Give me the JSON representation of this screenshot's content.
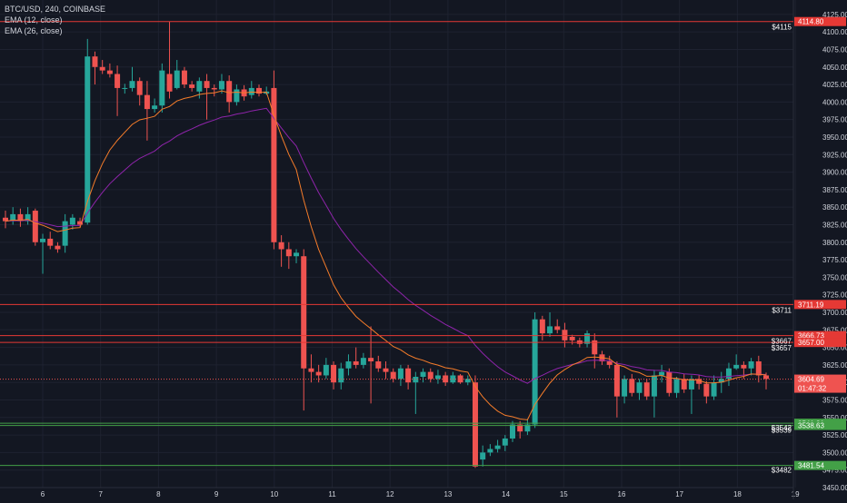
{
  "legend": {
    "symbol": "BTC/USD, 240, COINBASE",
    "ema_fast": "EMA (12, close)",
    "ema_slow": "EMA (26, close)"
  },
  "colors": {
    "background": "#131722",
    "grid": "#1e2230",
    "up": "#26a69a",
    "down": "#ef5350",
    "ema_fast": "#f57c2a",
    "ema_slow": "#8e24aa",
    "resistance": "#e53935",
    "support": "#43a047",
    "axis_text": "#d1d4dc"
  },
  "chart_data": {
    "type": "candlestick",
    "x_tick_labels": [
      "6",
      "7",
      "8",
      "9",
      "10",
      "11",
      "12",
      "13",
      "14",
      "15",
      "16",
      "17",
      "18",
      "19"
    ],
    "y_tick_labels": [
      "4125.00",
      "4100.00",
      "4075.00",
      "4050.00",
      "4025.00",
      "4000.00",
      "3975.00",
      "3950.00",
      "3925.00",
      "3900.00",
      "3875.00",
      "3850.00",
      "3825.00",
      "3800.00",
      "3775.00",
      "3750.00",
      "3725.00",
      "3700.00",
      "3675.00",
      "3650.00",
      "3625.00",
      "3600.00",
      "3575.00",
      "3550.00",
      "3525.00",
      "3500.00",
      "3475.00",
      "3450.00"
    ],
    "ylim": [
      3450,
      4130
    ],
    "grid": true,
    "levels": [
      {
        "price": 4114.8,
        "color": "red",
        "badge": "4114.80",
        "label": "$4115"
      },
      {
        "price": 3711.19,
        "color": "red",
        "badge": "3711.19",
        "label": "$3711"
      },
      {
        "price": 3666.73,
        "color": "red",
        "badge": "3666.73",
        "label": "$3667"
      },
      {
        "price": 3657.0,
        "color": "red",
        "badge": "3657.00",
        "label": "$3657"
      },
      {
        "price": 3541.81,
        "color": "green",
        "badge": "3541.81",
        "label": "$3542"
      },
      {
        "price": 3538.63,
        "color": "green",
        "badge": "3538.63",
        "label": "$3539"
      },
      {
        "price": 3481.54,
        "color": "green",
        "badge": "3481.54",
        "label": "$3482"
      }
    ],
    "current_price": {
      "price": 3604.69,
      "badge": "3604.69",
      "countdown": "01:47:32"
    },
    "candles": [
      [
        3835,
        3830,
        3845,
        3820
      ],
      [
        3830,
        3840,
        3850,
        3825
      ],
      [
        3840,
        3830,
        3848,
        3822
      ],
      [
        3830,
        3840,
        3850,
        3825
      ],
      [
        3845,
        3800,
        3848,
        3795
      ],
      [
        3800,
        3805,
        3812,
        3755
      ],
      [
        3805,
        3795,
        3815,
        3790
      ],
      [
        3795,
        3790,
        3800,
        3785
      ],
      [
        3795,
        3830,
        3840,
        3785
      ],
      [
        3825,
        3835,
        3840,
        3818
      ],
      [
        3830,
        3825,
        3835,
        3822
      ],
      [
        3828,
        4065,
        4090,
        3825
      ],
      [
        4065,
        4050,
        4072,
        4025
      ],
      [
        4050,
        4045,
        4060,
        4040
      ],
      [
        4045,
        4040,
        4055,
        4035
      ],
      [
        4040,
        4020,
        4052,
        3980
      ],
      [
        4020,
        4020,
        4026,
        4012
      ],
      [
        4020,
        4030,
        4050,
        4015
      ],
      [
        4030,
        4010,
        4035,
        3995
      ],
      [
        4010,
        3990,
        4030,
        3945
      ],
      [
        3990,
        3995,
        4005,
        3985
      ],
      [
        3995,
        4045,
        4055,
        3985
      ],
      [
        4040,
        4015,
        4115,
        4005
      ],
      [
        4020,
        4045,
        4060,
        4018
      ],
      [
        4045,
        4025,
        4050,
        4020
      ],
      [
        4025,
        4020,
        4030,
        4015
      ],
      [
        4015,
        4030,
        4035,
        4005
      ],
      [
        4030,
        4020,
        4040,
        3975
      ],
      [
        4020,
        4018,
        4025,
        4008
      ],
      [
        4018,
        4030,
        4040,
        4012
      ],
      [
        4030,
        4000,
        4038,
        3985
      ],
      [
        4000,
        4018,
        4025,
        3995
      ],
      [
        4018,
        4008,
        4024,
        4002
      ],
      [
        4010,
        4020,
        4030,
        4005
      ],
      [
        4020,
        4012,
        4025,
        4008
      ],
      [
        4012,
        4015,
        4022,
        4010
      ],
      [
        4020,
        3800,
        4045,
        3790
      ],
      [
        3800,
        3790,
        3810,
        3765
      ],
      [
        3790,
        3780,
        3800,
        3762
      ],
      [
        3780,
        3785,
        3790,
        3770
      ],
      [
        3780,
        3620,
        3790,
        3560
      ],
      [
        3620,
        3615,
        3640,
        3600
      ],
      [
        3615,
        3610,
        3625,
        3600
      ],
      [
        3610,
        3625,
        3635,
        3605
      ],
      [
        3625,
        3600,
        3630,
        3590
      ],
      [
        3600,
        3620,
        3628,
        3590
      ],
      [
        3620,
        3630,
        3640,
        3610
      ],
      [
        3630,
        3625,
        3650,
        3620
      ],
      [
        3625,
        3635,
        3642,
        3620
      ],
      [
        3635,
        3630,
        3680,
        3570
      ],
      [
        3630,
        3620,
        3638,
        3615
      ],
      [
        3620,
        3615,
        3630,
        3605
      ],
      [
        3615,
        3605,
        3620,
        3600
      ],
      [
        3605,
        3620,
        3625,
        3595
      ],
      [
        3620,
        3600,
        3625,
        3590
      ],
      [
        3600,
        3608,
        3615,
        3555
      ],
      [
        3608,
        3615,
        3620,
        3600
      ],
      [
        3615,
        3605,
        3620,
        3600
      ],
      [
        3605,
        3610,
        3618,
        3598
      ],
      [
        3610,
        3600,
        3615,
        3595
      ],
      [
        3600,
        3610,
        3615,
        3598
      ],
      [
        3610,
        3600,
        3612,
        3598
      ],
      [
        3600,
        3605,
        3610,
        3596
      ],
      [
        3600,
        3480,
        3610,
        3478
      ],
      [
        3490,
        3500,
        3510,
        3480
      ],
      [
        3500,
        3505,
        3512,
        3495
      ],
      [
        3505,
        3510,
        3518,
        3500
      ],
      [
        3510,
        3520,
        3525,
        3502
      ],
      [
        3520,
        3540,
        3545,
        3515
      ],
      [
        3540,
        3530,
        3545,
        3520
      ],
      [
        3530,
        3540,
        3548,
        3525
      ],
      [
        3540,
        3690,
        3700,
        3535
      ],
      [
        3690,
        3670,
        3695,
        3660
      ],
      [
        3670,
        3680,
        3700,
        3665
      ],
      [
        3680,
        3675,
        3690,
        3670
      ],
      [
        3675,
        3660,
        3685,
        3650
      ],
      [
        3665,
        3660,
        3668,
        3654
      ],
      [
        3660,
        3655,
        3664,
        3650
      ],
      [
        3655,
        3670,
        3674,
        3650
      ],
      [
        3660,
        3640,
        3670,
        3620
      ],
      [
        3640,
        3630,
        3645,
        3625
      ],
      [
        3630,
        3625,
        3638,
        3620
      ],
      [
        3625,
        3580,
        3630,
        3550
      ],
      [
        3580,
        3605,
        3610,
        3570
      ],
      [
        3605,
        3585,
        3612,
        3580
      ],
      [
        3585,
        3600,
        3605,
        3575
      ],
      [
        3600,
        3580,
        3605,
        3575
      ],
      [
        3580,
        3610,
        3618,
        3550
      ],
      [
        3610,
        3615,
        3625,
        3600
      ],
      [
        3615,
        3585,
        3620,
        3580
      ],
      [
        3585,
        3605,
        3608,
        3578
      ],
      [
        3605,
        3590,
        3612,
        3585
      ],
      [
        3590,
        3605,
        3610,
        3555
      ],
      [
        3605,
        3598,
        3610,
        3590
      ],
      [
        3598,
        3580,
        3602,
        3570
      ],
      [
        3580,
        3600,
        3610,
        3575
      ],
      [
        3600,
        3605,
        3615,
        3585
      ],
      [
        3605,
        3620,
        3628,
        3595
      ],
      [
        3620,
        3625,
        3640,
        3618
      ],
      [
        3625,
        3620,
        3630,
        3605
      ],
      [
        3620,
        3630,
        3635,
        3610
      ],
      [
        3630,
        3610,
        3638,
        3600
      ],
      [
        3610,
        3605,
        3614,
        3590
      ]
    ]
  }
}
